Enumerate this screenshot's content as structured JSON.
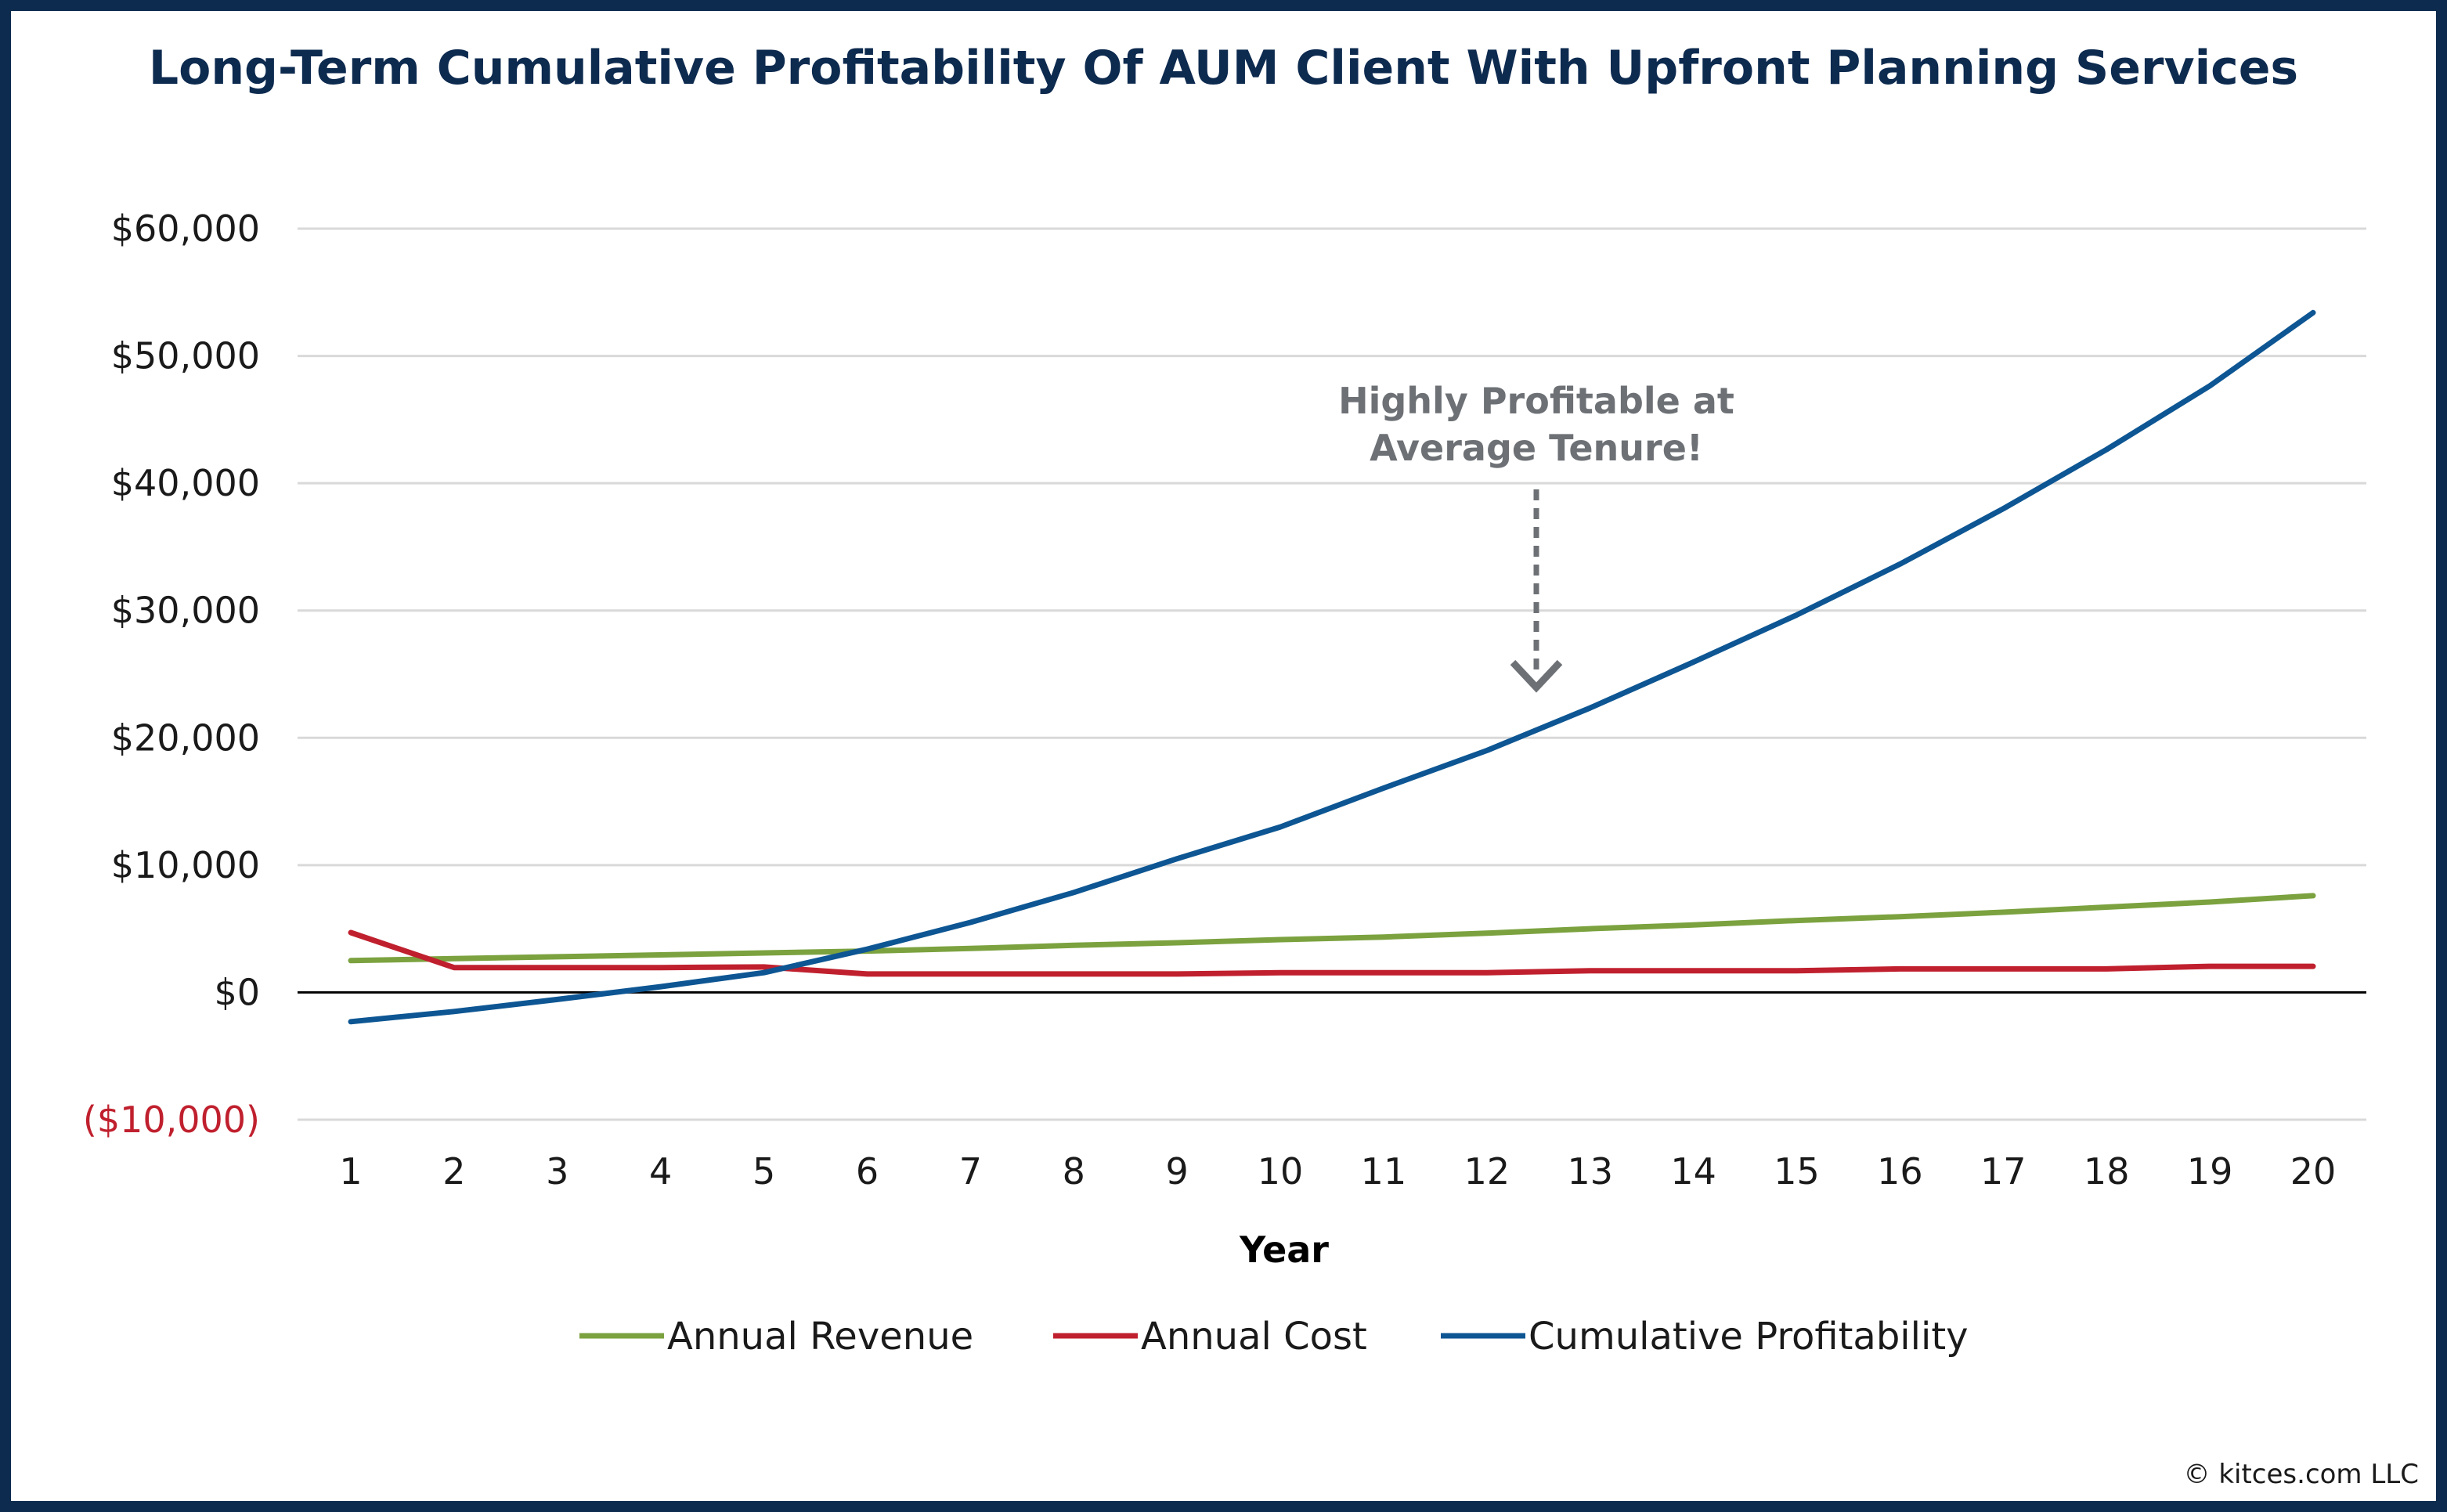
{
  "chart_data": {
    "type": "line",
    "title": "Long-Term Cumulative Profitability Of AUM Client With Upfront Planning Services",
    "xlabel": "Year",
    "ylabel": "",
    "x": [
      1,
      2,
      3,
      4,
      5,
      6,
      7,
      8,
      9,
      10,
      11,
      12,
      13,
      14,
      15,
      16,
      17,
      18,
      19,
      20
    ],
    "x_tick_labels": [
      "1",
      "2",
      "3",
      "4",
      "5",
      "6",
      "7",
      "8",
      "9",
      "10",
      "11",
      "12",
      "13",
      "14",
      "15",
      "16",
      "17",
      "18",
      "19",
      "20"
    ],
    "ylim": [
      -10000,
      60000
    ],
    "y_tick_values": [
      60000,
      50000,
      40000,
      30000,
      20000,
      10000,
      0,
      -10000
    ],
    "y_tick_labels": [
      "$60,000",
      "$50,000",
      "$40,000",
      "$30,000",
      "$20,000",
      "$10,000",
      "$0",
      "($10,000)"
    ],
    "grid": true,
    "legend_position": "bottom",
    "series": [
      {
        "name": "Annual Revenue",
        "color": "#7ba23f",
        "values": [
          2500,
          2650,
          2800,
          2950,
          3100,
          3250,
          3450,
          3700,
          3900,
          4150,
          4350,
          4650,
          5000,
          5300,
          5650,
          5950,
          6300,
          6700,
          7100,
          7600
        ]
      },
      {
        "name": "Annual Cost",
        "color": "#c0202e",
        "values": [
          4700,
          1950,
          1950,
          1950,
          2000,
          1450,
          1450,
          1450,
          1450,
          1550,
          1550,
          1550,
          1700,
          1700,
          1700,
          1850,
          1850,
          1850,
          2050,
          2050
        ]
      },
      {
        "name": "Cumulative Profitability",
        "color": "#0d5693",
        "values": [
          -2300,
          -1500,
          -550,
          450,
          1550,
          3400,
          5500,
          7850,
          10500,
          13000,
          16050,
          19000,
          22350,
          25950,
          29650,
          33650,
          38000,
          42650,
          47650,
          53400
        ]
      }
    ],
    "annotation": {
      "text_line1": "Highly Profitable at",
      "text_line2": "Average Tenure!",
      "x": 12.5,
      "arrow_style": "dashed-down"
    }
  },
  "footer": {
    "copyright": "© kitces.com LLC"
  }
}
